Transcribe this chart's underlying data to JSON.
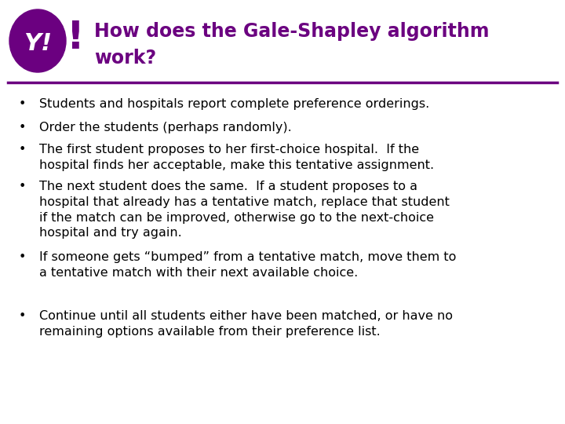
{
  "title_line1": "How does the Gale-Shapley algorithm",
  "title_line2": "work?",
  "title_color": "#6B0080",
  "title_fontsize": 17,
  "bg_color": "#FFFFFF",
  "divider_color": "#6B0080",
  "bullet_color": "#000000",
  "bullet_fontsize": 11.5,
  "bullets": [
    "Students and hospitals report complete preference orderings.",
    "Order the students (perhaps randomly).",
    "The first student proposes to her first-choice hospital.  If the\nhospital finds her acceptable, make this tentative assignment.",
    "The next student does the same.  If a student proposes to a\nhospital that already has a tentative match, replace that student\nif the match can be improved, otherwise go to the next-choice\nhospital and try again.",
    "If someone gets “bumped” from a tentative match, move them to\na tentative match with their next available choice.",
    "Continue until all students either have been matched, or have no\nremaining options available from their preference list."
  ],
  "yahoo_purple": "#6B0080",
  "exclaim_color": "#6B0080"
}
